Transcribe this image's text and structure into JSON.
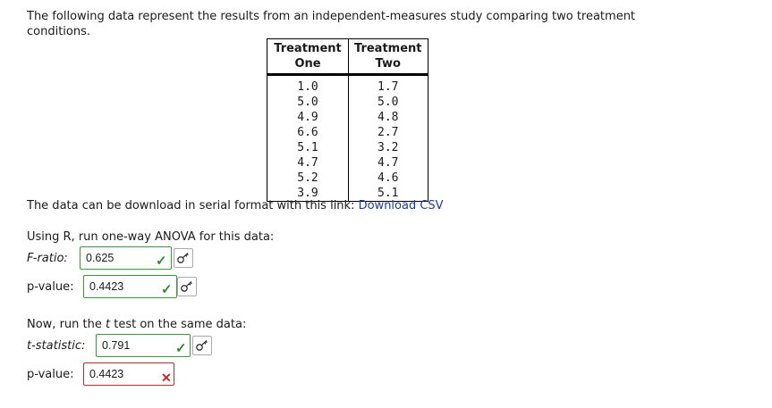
{
  "intro_text": "The following data represent the results from an independent-measures study comparing two treatment conditions.",
  "table": {
    "headers": [
      [
        "Treatment",
        "One"
      ],
      [
        "Treatment",
        "Two"
      ]
    ],
    "rows": [
      [
        "1.0",
        "1.7"
      ],
      [
        "5.0",
        "5.0"
      ],
      [
        "4.9",
        "4.8"
      ],
      [
        "6.6",
        "2.7"
      ],
      [
        "5.1",
        "3.2"
      ],
      [
        "4.7",
        "4.7"
      ],
      [
        "5.2",
        "4.6"
      ],
      [
        "3.9",
        "5.1"
      ]
    ]
  },
  "download": {
    "text": "The data can be download in serial format with this link:",
    "link_label": "Download CSV"
  },
  "anova": {
    "instruction": "Using R, run one-way ANOVA for this data:",
    "f_label": "F-ratio:",
    "f_value": "0.625",
    "f_status": "correct",
    "p_label": "p-value:",
    "p_value": "0.4423",
    "p_status": "correct"
  },
  "ttest": {
    "instruction_prefix": "Now, run the ",
    "instruction_t": "t",
    "instruction_suffix": " test on the same data:",
    "t_label": "t-statistic:",
    "t_value": "0.791",
    "t_status": "correct",
    "p_label": "p-value:",
    "p_value": "0.4423",
    "p_status": "incorrect"
  },
  "colors": {
    "correct": "#2e8b2e",
    "incorrect": "#c0282b",
    "link": "#1a3a9e"
  },
  "icons": {
    "correct": "check-icon",
    "incorrect": "cross-icon",
    "hint": "key-icon"
  }
}
